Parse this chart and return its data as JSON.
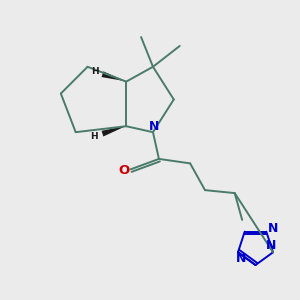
{
  "bg_color": "#ebebeb",
  "bond_color": "#4a7a6a",
  "N_color": "#0000cc",
  "O_color": "#cc0000",
  "wedge_color": "#1a1a1a",
  "line_width": 1.4,
  "fig_size": [
    3.0,
    3.0
  ],
  "dpi": 100,
  "xlim": [
    0,
    10
  ],
  "ylim": [
    0,
    10
  ]
}
